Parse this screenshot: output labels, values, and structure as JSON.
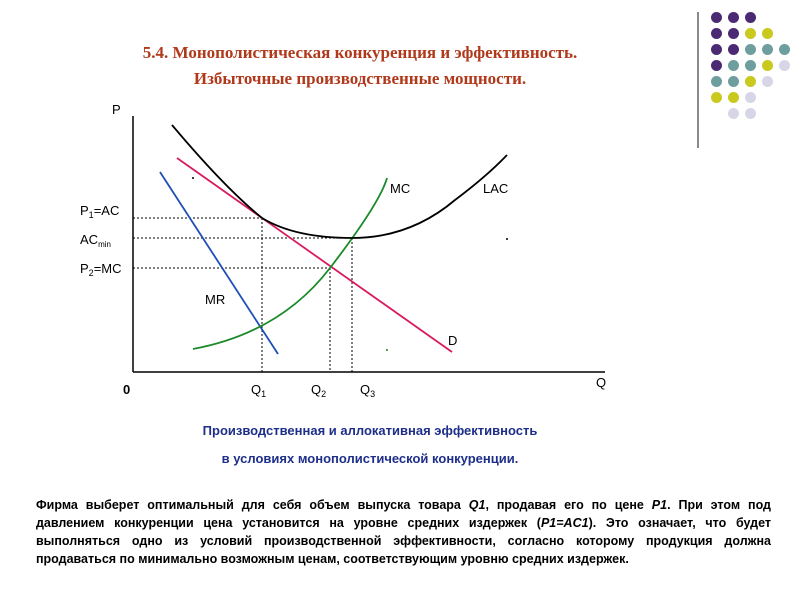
{
  "slide": {
    "title_line1": "5.4. Монополистическая конкуренция и эффективность.",
    "title_line2": "Избыточные производственные мощности."
  },
  "decor": {
    "dot_rows": [
      [
        "#4b2a73",
        "#4b2a73",
        "#4b2a73",
        null
      ],
      [
        "#4b2a73",
        "#4b2a73",
        "#c9c91e",
        "#c9c91e"
      ],
      [
        "#4b2a73",
        "#4b2a73",
        "#6e9e9e",
        "#6e9e9e",
        "#6e9e9e"
      ],
      [
        "#4b2a73",
        "#6e9e9e",
        "#6e9e9e",
        "#c9c91e",
        "#d6d6e6"
      ],
      [
        "#6e9e9e",
        "#6e9e9e",
        "#c9c91e",
        "#d6d6e6",
        null
      ],
      [
        "#c9c91e",
        "#c9c91e",
        "#d6d6e6",
        null,
        null
      ],
      [
        null,
        "#d6d6e6",
        "#d6d6e6",
        null,
        null
      ]
    ]
  },
  "diagram": {
    "y_axis_label": "P",
    "x_axis_label": "Q",
    "origin_label": "0",
    "p1_label": "P",
    "p1_sub": "1",
    "p1_suffix": "=AC",
    "acmin_label": "AC",
    "acmin_sub": "min",
    "p2_label": "P",
    "p2_sub": "2",
    "p2_suffix": "=MC",
    "q1_label": "Q",
    "q1_sub": "1",
    "q2_label": "Q",
    "q2_sub": "2",
    "q3_label": "Q",
    "q3_sub": "3",
    "mc_label": "MC",
    "lac_label": "LAC",
    "mr_label": "MR",
    "d_label": "D",
    "colors": {
      "lac": "#000000",
      "mc": "#1a8a2a",
      "mr": "#1f4fb5",
      "demand": "#d81b60"
    }
  },
  "caption": {
    "line1": "Производственная и аллокативная эффективность",
    "line2": "в условиях монополистической конкуренции."
  },
  "paragraph": {
    "part1": "Фирма выберет оптимальный для себя объем выпуска товара ",
    "q1": "Q1",
    "part2": ", продавая его по цене ",
    "p1": "P1",
    "part3": ". При этом под давлением конкуренции цена установится на уровне средних издержек (",
    "formula": "P1=AC1",
    "part4": "). Это означает, что будет выполняться одно из условий производственной эффективности, согласно которому продукция должна продаваться по минимально возможным ценам, соответствующим уровню средних издержек."
  }
}
